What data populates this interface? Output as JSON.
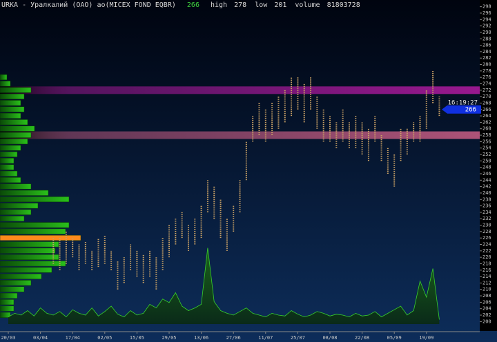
{
  "chart_data": {
    "type": "range",
    "title": "URKA - Уралкалий (ОАО) ао(MICEX FOND EQBR)",
    "last": 266,
    "stats": [
      {
        "label": "high",
        "value": 278
      },
      {
        "label": "low",
        "value": 201
      },
      {
        "label": "volume",
        "value": 81803728
      }
    ],
    "time": "16:19:27",
    "color": "#c8a064",
    "last_color": "#1030e0",
    "ylim": [
      199,
      299
    ],
    "yticks": [
      200,
      202,
      204,
      206,
      208,
      210,
      212,
      214,
      216,
      218,
      220,
      222,
      224,
      226,
      228,
      230,
      232,
      234,
      236,
      238,
      240,
      242,
      244,
      246,
      248,
      250,
      252,
      254,
      256,
      258,
      260,
      262,
      264,
      266,
      268,
      270,
      272,
      274,
      276,
      278,
      280,
      282,
      284,
      286,
      288,
      290,
      292,
      294,
      296,
      298
    ],
    "categories": [
      "20/03",
      null,
      null,
      null,
      null,
      "03/04",
      null,
      null,
      null,
      null,
      "17/04",
      null,
      null,
      null,
      null,
      "02/05",
      null,
      null,
      null,
      null,
      "15/05",
      null,
      null,
      null,
      null,
      "29/05",
      null,
      null,
      null,
      null,
      "13/06",
      null,
      null,
      null,
      null,
      "27/06",
      null,
      null,
      null,
      null,
      "11/07",
      null,
      null,
      null,
      null,
      "25/07",
      null,
      null,
      null,
      null,
      "08/08",
      null,
      null,
      null,
      null,
      "22/08",
      null,
      null,
      null,
      null,
      "05/09",
      null,
      null,
      null,
      null,
      "19/09",
      null,
      null
    ],
    "low": [
      null,
      null,
      null,
      null,
      null,
      null,
      null,
      218,
      216,
      218,
      220,
      216,
      218,
      216,
      217,
      218,
      216,
      210,
      212,
      216,
      214,
      212,
      214,
      210,
      216,
      220,
      224,
      226,
      222,
      224,
      226,
      234,
      232,
      226,
      222,
      228,
      234,
      244,
      256,
      258,
      256,
      258,
      260,
      262,
      264,
      266,
      262,
      266,
      260,
      256,
      256,
      254,
      256,
      254,
      254,
      252,
      250,
      256,
      250,
      246,
      242,
      250,
      252,
      256,
      256,
      260,
      268,
      264
    ],
    "high": [
      null,
      null,
      null,
      null,
      null,
      null,
      null,
      226,
      226,
      228,
      226,
      224,
      225,
      222,
      226,
      227,
      222,
      219,
      220,
      224,
      222,
      221,
      222,
      220,
      226,
      230,
      232,
      234,
      230,
      232,
      236,
      244,
      242,
      238,
      232,
      236,
      244,
      256,
      264,
      268,
      266,
      268,
      270,
      272,
      276,
      276,
      274,
      276,
      270,
      266,
      264,
      262,
      266,
      262,
      264,
      262,
      260,
      264,
      258,
      254,
      252,
      260,
      260,
      262,
      264,
      272,
      278,
      270
    ],
    "volume": [
      8,
      12,
      10,
      15,
      9,
      18,
      12,
      10,
      14,
      8,
      16,
      12,
      10,
      18,
      9,
      14,
      20,
      11,
      8,
      15,
      10,
      12,
      22,
      18,
      28,
      24,
      35,
      20,
      15,
      18,
      22,
      85,
      25,
      15,
      12,
      10,
      14,
      18,
      12,
      10,
      8,
      12,
      10,
      9,
      15,
      11,
      8,
      10,
      14,
      12,
      9,
      11,
      10,
      8,
      12,
      9,
      10,
      14,
      8,
      12,
      16,
      20,
      10,
      15,
      48,
      30,
      62,
      5
    ],
    "volume_lim": [
      0,
      100
    ],
    "volume_color": "#39d12a",
    "profile_levels": [
      276,
      274,
      272,
      270,
      268,
      266,
      264,
      262,
      260,
      258,
      256,
      254,
      252,
      250,
      248,
      246,
      244,
      242,
      240,
      238,
      236,
      234,
      232,
      230,
      228,
      226,
      224,
      222,
      220,
      218,
      216,
      214,
      212,
      210,
      208,
      206,
      204,
      202
    ],
    "profile_values": [
      10,
      15,
      45,
      35,
      30,
      35,
      30,
      40,
      50,
      45,
      40,
      30,
      25,
      20,
      20,
      25,
      30,
      45,
      70,
      100,
      55,
      45,
      35,
      100,
      95,
      117,
      85,
      80,
      85,
      95,
      75,
      60,
      45,
      35,
      25,
      20,
      20,
      15
    ],
    "profile_xlim": [
      0,
      120
    ],
    "profile_color": "#22b014",
    "profile_peak_color": "#ff8a1c",
    "bands": [
      {
        "value": 272,
        "color": "#a8199a"
      },
      {
        "value": 258,
        "color": "#c05a80"
      }
    ]
  }
}
